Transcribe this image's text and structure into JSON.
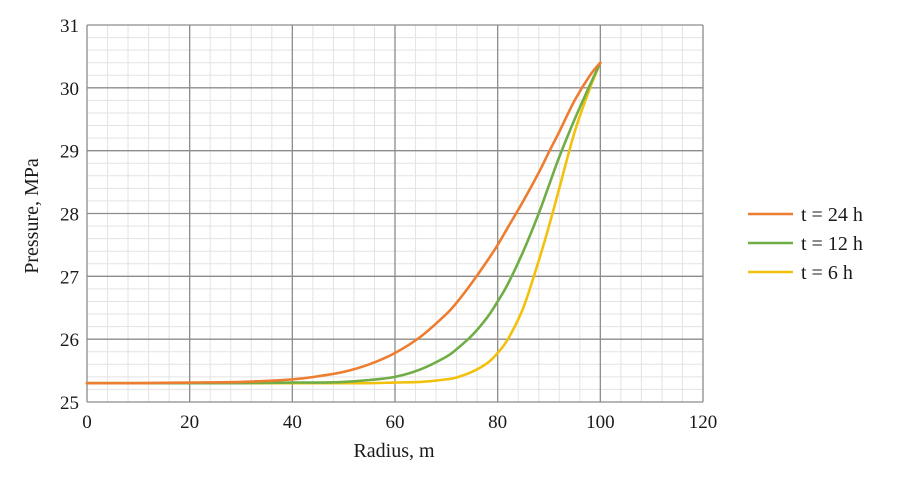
{
  "chart_data": {
    "type": "line",
    "xlabel": "Radius, m",
    "ylabel": "Pressure, MPa",
    "xlim": [
      0,
      120
    ],
    "ylim": [
      25,
      31
    ],
    "x_ticks": [
      "0",
      "20",
      "40",
      "60",
      "80",
      "100",
      "120"
    ],
    "y_ticks": [
      "25",
      "26",
      "27",
      "28",
      "29",
      "30",
      "31"
    ],
    "grid": true,
    "legend_position": "right",
    "x": [
      0,
      10,
      20,
      30,
      40,
      45,
      50,
      55,
      60,
      65,
      70,
      72,
      75,
      78,
      80,
      82,
      85,
      88,
      90,
      92,
      95,
      98,
      100
    ],
    "series": [
      {
        "name": "t = 24 h",
        "color": "#ED7D31",
        "values": [
          25.3,
          25.3,
          25.31,
          25.32,
          25.36,
          25.41,
          25.48,
          25.6,
          25.78,
          26.04,
          26.4,
          26.58,
          26.9,
          27.25,
          27.5,
          27.78,
          28.2,
          28.65,
          28.98,
          29.3,
          29.8,
          30.2,
          30.4
        ]
      },
      {
        "name": "t = 12 h",
        "color": "#70AD47",
        "values": [
          25.3,
          25.3,
          25.3,
          25.3,
          25.31,
          25.31,
          25.32,
          25.35,
          25.4,
          25.52,
          25.72,
          25.84,
          26.06,
          26.35,
          26.6,
          26.88,
          27.4,
          28.0,
          28.45,
          28.9,
          29.5,
          30.05,
          30.4
        ]
      },
      {
        "name": "t = 6 h",
        "color": "#F2C10D",
        "values": [
          25.3,
          25.3,
          25.3,
          25.3,
          25.3,
          25.3,
          25.3,
          25.3,
          25.31,
          25.32,
          25.36,
          25.39,
          25.48,
          25.62,
          25.78,
          26.0,
          26.5,
          27.25,
          27.8,
          28.4,
          29.3,
          30.0,
          30.4
        ]
      }
    ]
  }
}
